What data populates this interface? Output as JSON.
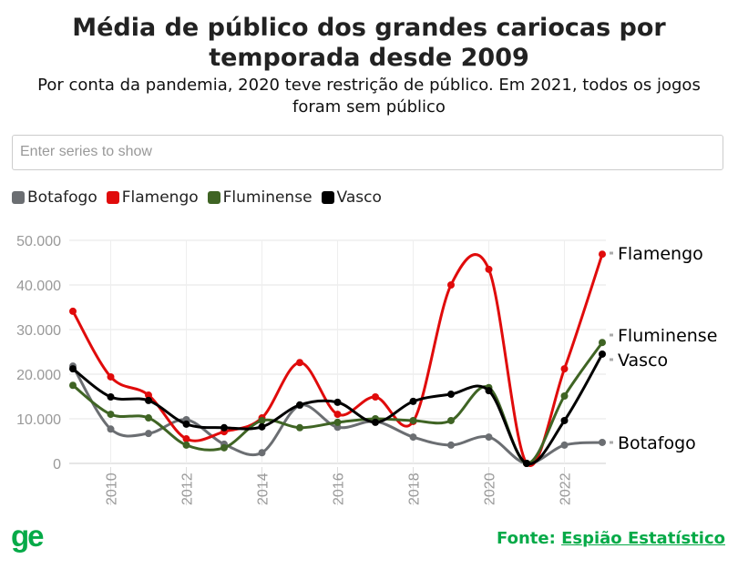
{
  "title": "Média de público dos grandes cariocas por temporada desde 2009",
  "subtitle": "Por conta da pandemia, 2020 teve restrição de público. Em 2021, todos os jogos foram sem público",
  "search": {
    "placeholder": "Enter series to show"
  },
  "logo": "ge",
  "source": {
    "label": "Fonte:",
    "link": "Espião Estatístico"
  },
  "chart_data": {
    "type": "line",
    "x": [
      2009,
      2010,
      2011,
      2012,
      2013,
      2014,
      2015,
      2016,
      2017,
      2018,
      2019,
      2020,
      2021,
      2022,
      2023
    ],
    "xticks": [
      "2010",
      "2012",
      "2014",
      "2016",
      "2018",
      "2020",
      "2022"
    ],
    "yticks": [
      "0",
      "10.000",
      "20.000",
      "30.000",
      "40.000",
      "50.000"
    ],
    "ylim": [
      0,
      50000
    ],
    "grid": true,
    "legend": "top-left",
    "series": [
      {
        "name": "Botafogo",
        "color": "#6b6e72",
        "values": [
          21800,
          7700,
          6700,
          9800,
          4300,
          2400,
          13000,
          8100,
          9400,
          5900,
          4100,
          5900,
          0,
          4100,
          4700
        ]
      },
      {
        "name": "Flamengo",
        "color": "#e00b0b",
        "values": [
          34100,
          19400,
          15300,
          5500,
          7100,
          10200,
          22600,
          11000,
          14900,
          9400,
          40000,
          43500,
          0,
          21200,
          46900
        ]
      },
      {
        "name": "Fluminense",
        "color": "#3f6424",
        "values": [
          17500,
          11000,
          10200,
          4100,
          3500,
          9600,
          8000,
          9200,
          10000,
          9600,
          9600,
          17000,
          0,
          15100,
          27100
        ]
      },
      {
        "name": "Vasco",
        "color": "#000000",
        "values": [
          21200,
          14900,
          14100,
          8800,
          8000,
          8200,
          13100,
          13700,
          9200,
          13900,
          15500,
          16300,
          0,
          9600,
          24500
        ]
      }
    ]
  }
}
